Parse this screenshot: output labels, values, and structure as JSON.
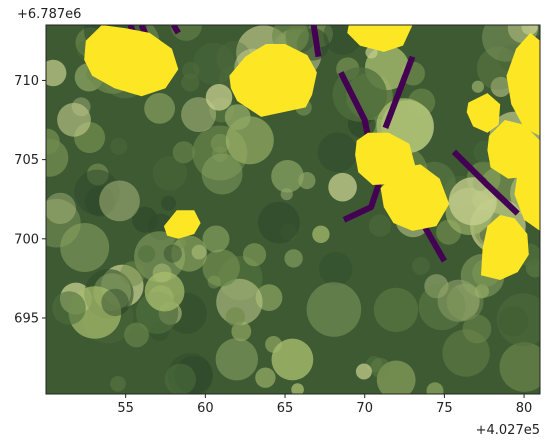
{
  "figure": {
    "x_offset_label": "+4.027e5",
    "y_offset_label": "+6.787e6"
  },
  "colors": {
    "forest_dark": "#2f4a2b",
    "forest_mid": "#4f6e3c",
    "canopy_light": "#a8bd6e",
    "canopy_pale": "#c7d08f",
    "polygon_yellow": "#fde725",
    "line_purple": "#440154",
    "axis": "#222222"
  },
  "chart_data": {
    "type": "map",
    "x_axis": {
      "range": [
        50,
        81
      ],
      "ticks": [
        55,
        60,
        65,
        70,
        75,
        80
      ],
      "tick_labels": [
        "55",
        "60",
        "65",
        "70",
        "75",
        "80"
      ],
      "offset": "+4.027e5"
    },
    "y_axis": {
      "range": [
        690.2,
        713.5
      ],
      "ticks": [
        695,
        700,
        705,
        710
      ],
      "tick_labels": [
        "695",
        "700",
        "705",
        "710"
      ],
      "offset": "+6.787e6"
    },
    "background": "aerial image of forest canopy",
    "tree_crown_polygons": [
      {
        "class": "yellow",
        "points": [
          [
            52.5,
            712.5
          ],
          [
            53.5,
            713.5
          ],
          [
            55,
            713.3
          ],
          [
            56.5,
            713
          ],
          [
            57.9,
            712
          ],
          [
            58.3,
            710.7
          ],
          [
            57.5,
            709.5
          ],
          [
            56,
            709
          ],
          [
            54.3,
            709.5
          ],
          [
            52.9,
            710.3
          ],
          [
            52.4,
            711.3
          ]
        ]
      },
      {
        "class": "yellow",
        "points": [
          [
            61.5,
            710.3
          ],
          [
            62.5,
            711.5
          ],
          [
            63.8,
            712.3
          ],
          [
            65,
            712.3
          ],
          [
            66.4,
            711.6
          ],
          [
            67,
            710.5
          ],
          [
            66.7,
            709.1
          ],
          [
            66.3,
            708.3
          ],
          [
            63.5,
            707.7
          ],
          [
            62,
            708.7
          ],
          [
            61.6,
            709.5
          ]
        ]
      },
      {
        "class": "yellow",
        "points": [
          [
            69,
            713.5
          ],
          [
            73,
            713.5
          ],
          [
            72.4,
            712.2
          ],
          [
            71.2,
            711.8
          ],
          [
            69.7,
            712.2
          ],
          [
            68.9,
            713
          ]
        ]
      },
      {
        "class": "yellow",
        "points": [
          [
            69.5,
            706.2
          ],
          [
            70.2,
            706.7
          ],
          [
            71.5,
            706.7
          ],
          [
            72.8,
            706
          ],
          [
            73.2,
            704.5
          ],
          [
            72.3,
            703.5
          ],
          [
            70.5,
            703.4
          ],
          [
            69.6,
            704.2
          ],
          [
            69.4,
            705.3
          ]
        ]
      },
      {
        "class": "yellow",
        "points": [
          [
            71,
            703.2
          ],
          [
            72.3,
            704.5
          ],
          [
            73.5,
            704.7
          ],
          [
            74.7,
            703.8
          ],
          [
            75.3,
            702.2
          ],
          [
            74.5,
            700.8
          ],
          [
            73,
            700.5
          ],
          [
            71.8,
            701
          ],
          [
            71.2,
            702
          ]
        ]
      },
      {
        "class": "yellow",
        "points": [
          [
            77.8,
            706.5
          ],
          [
            78.8,
            707.5
          ],
          [
            80,
            707.2
          ],
          [
            81,
            706.2
          ],
          [
            81,
            704.5
          ],
          [
            80,
            703.9
          ],
          [
            79,
            703.8
          ],
          [
            77.9,
            704.5
          ],
          [
            77.7,
            705.6
          ]
        ]
      },
      {
        "class": "yellow",
        "points": [
          [
            80,
            705
          ],
          [
            81,
            705.8
          ],
          [
            81,
            700.5
          ],
          [
            80,
            701.2
          ],
          [
            79.4,
            702.8
          ],
          [
            79.6,
            704.2
          ]
        ]
      },
      {
        "class": "yellow",
        "points": [
          [
            79.5,
            712
          ],
          [
            80.4,
            713
          ],
          [
            81,
            712.5
          ],
          [
            81,
            706.5
          ],
          [
            80,
            707
          ],
          [
            79.2,
            708.5
          ],
          [
            78.9,
            710.3
          ]
        ]
      },
      {
        "class": "yellow",
        "points": [
          [
            76.5,
            708.6
          ],
          [
            77.7,
            709.2
          ],
          [
            78.5,
            708.5
          ],
          [
            78.4,
            707.2
          ],
          [
            77.7,
            706.7
          ],
          [
            76.8,
            707.1
          ],
          [
            76.4,
            708
          ]
        ]
      },
      {
        "class": "yellow",
        "points": [
          [
            77.3,
            697.7
          ],
          [
            78.5,
            697.4
          ],
          [
            79.6,
            697.9
          ],
          [
            80.3,
            699
          ],
          [
            80.2,
            700.3
          ],
          [
            79.4,
            701.3
          ],
          [
            78.5,
            701.5
          ],
          [
            77.7,
            700.8
          ],
          [
            77.4,
            699.4
          ]
        ]
      },
      {
        "class": "yellow",
        "points": [
          [
            57.4,
            700.8
          ],
          [
            58.2,
            701.8
          ],
          [
            59.3,
            701.8
          ],
          [
            59.7,
            701
          ],
          [
            59.3,
            700.3
          ],
          [
            58.3,
            700
          ],
          [
            57.6,
            700.2
          ]
        ]
      }
    ],
    "line_features": [
      {
        "class": "purple",
        "points": [
          [
            55.3,
            713.5
          ],
          [
            56,
            711.5
          ]
        ]
      },
      {
        "class": "purple",
        "points": [
          [
            56,
            713.5
          ],
          [
            56.3,
            712.8
          ]
        ]
      },
      {
        "class": "purple",
        "points": [
          [
            58,
            713.5
          ],
          [
            58.3,
            713
          ]
        ]
      },
      {
        "class": "purple",
        "points": [
          [
            66.8,
            713.5
          ],
          [
            67.1,
            711.5
          ]
        ]
      },
      {
        "class": "purple",
        "points": [
          [
            68.5,
            710.5
          ],
          [
            70,
            707.5
          ],
          [
            70.2,
            706.5
          ]
        ]
      },
      {
        "class": "purple",
        "points": [
          [
            73,
            711.5
          ],
          [
            71.3,
            707
          ]
        ]
      },
      {
        "class": "purple",
        "points": [
          [
            71,
            703.8
          ],
          [
            70.4,
            702
          ],
          [
            68.7,
            701.2
          ]
        ]
      },
      {
        "class": "purple",
        "points": [
          [
            73.8,
            700.7
          ],
          [
            75,
            698.6
          ]
        ]
      },
      {
        "class": "purple",
        "points": [
          [
            75.6,
            705.5
          ],
          [
            77.6,
            703.5
          ],
          [
            79.6,
            701.6
          ]
        ]
      }
    ]
  }
}
